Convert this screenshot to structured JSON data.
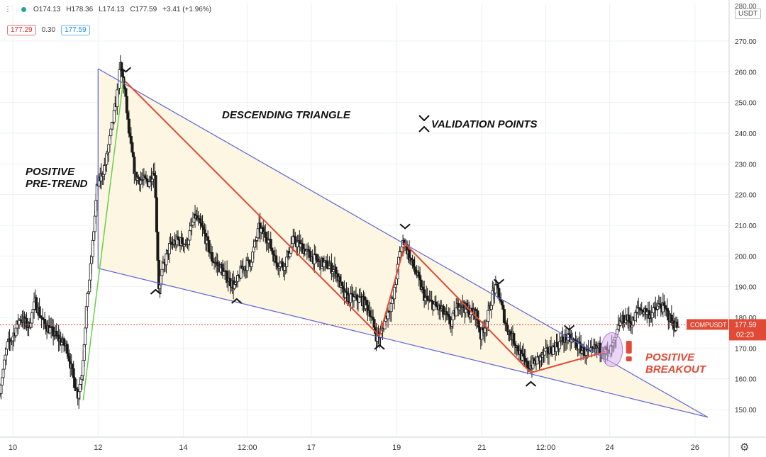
{
  "ohlc": {
    "open": "O174.13",
    "high": "H178.36",
    "low": "L174.13",
    "close": "C177.59",
    "change": "+3.41 (+1.96%)"
  },
  "quote": {
    "bid": "177.29",
    "spread": "0.30",
    "ask": "177.59"
  },
  "currency_badge": "USDT",
  "colors": {
    "pattern_fill": "#fdf6e3",
    "trendline": "#5b62d8",
    "path": "#e04a36",
    "pretrend": "#66d14a",
    "candle": "#1a1a1a",
    "price_marker": "#e04a36",
    "breakout_circle": "#d9b3f0"
  },
  "chart_data": {
    "type": "candlestick",
    "symbol": "COMPUSDT",
    "last_price": "177.59",
    "countdown": "02:23",
    "y_ticks": [
      150,
      160,
      170,
      180,
      190,
      200,
      210,
      220,
      230,
      240,
      250,
      260,
      270
    ],
    "y_tick_labels": [
      "150.00",
      "160.00",
      "170.00",
      "180.00",
      "190.00",
      "200.00",
      "210.00",
      "220.00",
      "230.00",
      "240.00",
      "250.00",
      "260.00",
      "270.00"
    ],
    "top_clipped_label": "280.00",
    "ylim": [
      141,
      282
    ],
    "x_ticks": [
      {
        "t": 0,
        "label": "10"
      },
      {
        "t": 2,
        "label": "12"
      },
      {
        "t": 4,
        "label": "14"
      },
      {
        "t": 5.5,
        "label": "12:00"
      },
      {
        "t": 7,
        "label": "17"
      },
      {
        "t": 9,
        "label": "19"
      },
      {
        "t": 11,
        "label": "21"
      },
      {
        "t": 12.5,
        "label": "12:00"
      },
      {
        "t": 14,
        "label": "24"
      },
      {
        "t": 16,
        "label": "26"
      }
    ],
    "xlim": [
      -0.3,
      16.8
    ],
    "series_key": [
      [
        -0.3,
        155
      ],
      [
        -0.2,
        163
      ],
      [
        -0.1,
        171
      ],
      [
        0.0,
        173
      ],
      [
        0.2,
        180
      ],
      [
        0.4,
        177
      ],
      [
        0.55,
        185
      ],
      [
        0.75,
        178
      ],
      [
        0.9,
        176
      ],
      [
        1.1,
        173
      ],
      [
        1.3,
        170
      ],
      [
        1.45,
        160
      ],
      [
        1.55,
        155
      ],
      [
        1.65,
        162
      ],
      [
        1.75,
        183
      ],
      [
        1.8,
        189
      ],
      [
        1.85,
        196
      ],
      [
        1.9,
        204
      ],
      [
        2.0,
        222
      ],
      [
        2.1,
        226
      ],
      [
        2.2,
        230
      ],
      [
        2.3,
        238
      ],
      [
        2.45,
        250
      ],
      [
        2.55,
        262
      ],
      [
        2.65,
        254
      ],
      [
        2.75,
        240
      ],
      [
        2.9,
        226
      ],
      [
        3.0,
        225
      ],
      [
        3.2,
        224
      ],
      [
        3.35,
        228
      ],
      [
        3.45,
        190
      ],
      [
        3.55,
        196
      ],
      [
        3.7,
        203
      ],
      [
        3.9,
        205
      ],
      [
        4.1,
        204
      ],
      [
        4.3,
        213
      ],
      [
        4.5,
        208
      ],
      [
        4.7,
        199
      ],
      [
        4.9,
        196
      ],
      [
        5.1,
        192
      ],
      [
        5.25,
        190
      ],
      [
        5.4,
        196
      ],
      [
        5.6,
        198
      ],
      [
        5.8,
        209
      ],
      [
        6.0,
        206
      ],
      [
        6.2,
        198
      ],
      [
        6.4,
        197
      ],
      [
        6.6,
        205
      ],
      [
        6.8,
        203
      ],
      [
        7.0,
        200
      ],
      [
        7.2,
        198
      ],
      [
        7.4,
        197
      ],
      [
        7.6,
        195
      ],
      [
        7.8,
        187
      ],
      [
        8.0,
        186
      ],
      [
        8.2,
        186
      ],
      [
        8.4,
        182
      ],
      [
        8.55,
        174
      ],
      [
        8.65,
        174
      ],
      [
        8.8,
        181
      ],
      [
        8.95,
        186
      ],
      [
        9.1,
        201
      ],
      [
        9.2,
        205
      ],
      [
        9.35,
        199
      ],
      [
        9.5,
        194
      ],
      [
        9.7,
        186
      ],
      [
        9.9,
        184
      ],
      [
        10.1,
        182
      ],
      [
        10.3,
        178
      ],
      [
        10.5,
        185
      ],
      [
        10.7,
        182
      ],
      [
        10.9,
        181
      ],
      [
        11.0,
        174
      ],
      [
        11.15,
        179
      ],
      [
        11.3,
        189
      ],
      [
        11.4,
        189
      ],
      [
        11.6,
        177
      ],
      [
        11.8,
        172
      ],
      [
        12.0,
        166
      ],
      [
        12.1,
        164
      ],
      [
        12.25,
        165
      ],
      [
        12.4,
        167
      ],
      [
        12.6,
        169
      ],
      [
        12.8,
        171
      ],
      [
        12.95,
        173
      ],
      [
        13.05,
        173
      ],
      [
        13.2,
        172
      ],
      [
        13.4,
        169
      ],
      [
        13.55,
        168
      ],
      [
        13.7,
        170
      ],
      [
        13.85,
        170
      ],
      [
        14.0,
        168
      ],
      [
        14.15,
        172
      ],
      [
        14.25,
        178
      ],
      [
        14.4,
        180
      ],
      [
        14.55,
        178
      ],
      [
        14.7,
        183
      ],
      [
        14.85,
        182
      ],
      [
        15.0,
        181
      ],
      [
        15.2,
        184
      ],
      [
        15.35,
        182
      ],
      [
        15.5,
        178
      ],
      [
        15.6,
        177
      ]
    ],
    "pattern": {
      "upper_trendline": [
        [
          2.0,
          261
        ],
        [
          16.3,
          147.5
        ]
      ],
      "lower_trendline": [
        [
          2.0,
          196
        ],
        [
          16.3,
          147.5
        ]
      ],
      "validation_path": [
        [
          2.63,
          257
        ],
        [
          8.6,
          174
        ],
        [
          9.2,
          204
        ],
        [
          12.15,
          162
        ],
        [
          13.95,
          169
        ]
      ],
      "pretrend_line": [
        [
          1.65,
          153
        ],
        [
          2.6,
          258
        ]
      ]
    },
    "validation_markers": [
      {
        "t": 2.65,
        "price": 260,
        "kind": "top"
      },
      {
        "t": 3.35,
        "price": 189,
        "kind": "bottom"
      },
      {
        "t": 5.25,
        "price": 186,
        "kind": "bottom"
      },
      {
        "t": 8.6,
        "price": 171,
        "kind": "bottom"
      },
      {
        "t": 9.2,
        "price": 209,
        "kind": "top"
      },
      {
        "t": 11.4,
        "price": 191,
        "kind": "top"
      },
      {
        "t": 12.15,
        "price": 159,
        "kind": "bottom"
      },
      {
        "t": 13.05,
        "price": 176,
        "kind": "top"
      }
    ],
    "breakout": {
      "t": 14.05,
      "price": 169.5
    },
    "annotations": {
      "pretrend_line1": "POSITIVE",
      "pretrend_line2": "PRE-TREND",
      "pattern": "DESCENDING TRIANGLE",
      "validation": "VALIDATION POINTS",
      "breakout_line1": "POSITIVE",
      "breakout_line2": "BREAKOUT"
    }
  }
}
